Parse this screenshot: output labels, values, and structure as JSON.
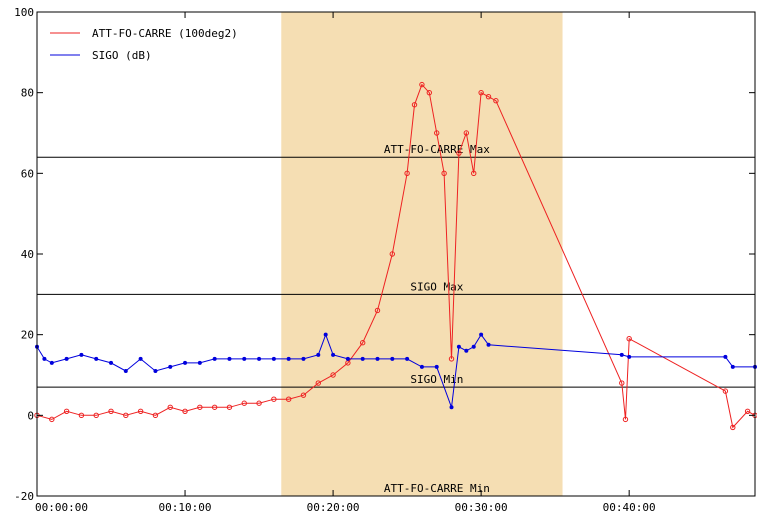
{
  "chart_data": {
    "type": "line",
    "title": "",
    "xlabel": "",
    "ylabel": "",
    "xlim": [
      "00:00:00",
      "00:48:30"
    ],
    "ylim": [
      -20,
      100
    ],
    "x_ticks": [
      "00:00:00",
      "00:10:00",
      "00:20:00",
      "00:30:00",
      "00:40:00"
    ],
    "y_ticks": [
      "-20",
      "0",
      "20",
      "40",
      "60",
      "80",
      "100"
    ],
    "grid": false,
    "legend": {
      "placement": "top-left",
      "entries": [
        {
          "label": "ATT-FO-CARRE (100deg2)",
          "color": "#ee2222"
        },
        {
          "label": "SIGO (dB)",
          "color": "#0000dd"
        }
      ]
    },
    "highlight_band": {
      "x_start": "00:16:30",
      "x_end": "00:35:30",
      "color": "#f5deb3"
    },
    "reference_lines": [
      {
        "label": "ATT-FO-CARRE Max",
        "y": 64
      },
      {
        "label": "SIGO Max",
        "y": 30
      },
      {
        "label": "SIGO Min",
        "y": 7
      },
      {
        "label": "ATT-FO-CARRE Min",
        "y": -20
      }
    ],
    "series": [
      {
        "name": "ATT-FO-CARRE (100deg2)",
        "color": "#ee2222",
        "x": [
          "00:00:00",
          "00:01:00",
          "00:02:00",
          "00:03:00",
          "00:04:00",
          "00:05:00",
          "00:06:00",
          "00:07:00",
          "00:08:00",
          "00:09:00",
          "00:10:00",
          "00:11:00",
          "00:12:00",
          "00:13:00",
          "00:14:00",
          "00:15:00",
          "00:16:00",
          "00:17:00",
          "00:18:00",
          "00:19:00",
          "00:20:00",
          "00:21:00",
          "00:22:00",
          "00:23:00",
          "00:24:00",
          "00:25:00",
          "00:25:30",
          "00:26:00",
          "00:26:30",
          "00:27:00",
          "00:27:30",
          "00:28:00",
          "00:28:30",
          "00:29:00",
          "00:29:30",
          "00:30:00",
          "00:30:30",
          "00:31:00",
          "00:39:30",
          "00:39:45",
          "00:40:00",
          "00:46:30",
          "00:47:00",
          "00:48:00",
          "00:48:30"
        ],
        "values": [
          0,
          -1,
          1,
          0,
          0,
          1,
          0,
          1,
          0,
          2,
          1,
          2,
          2,
          2,
          3,
          3,
          4,
          4,
          5,
          8,
          10,
          13,
          18,
          26,
          40,
          60,
          77,
          82,
          80,
          70,
          60,
          14,
          65,
          70,
          60,
          80,
          79,
          78,
          8,
          -1,
          19,
          6,
          -3,
          1,
          0
        ]
      },
      {
        "name": "SIGO (dB)",
        "color": "#0000dd",
        "x": [
          "00:00:00",
          "00:00:30",
          "00:01:00",
          "00:02:00",
          "00:03:00",
          "00:04:00",
          "00:05:00",
          "00:06:00",
          "00:07:00",
          "00:08:00",
          "00:09:00",
          "00:10:00",
          "00:11:00",
          "00:12:00",
          "00:13:00",
          "00:14:00",
          "00:15:00",
          "00:16:00",
          "00:17:00",
          "00:18:00",
          "00:19:00",
          "00:19:30",
          "00:20:00",
          "00:21:00",
          "00:22:00",
          "00:23:00",
          "00:24:00",
          "00:25:00",
          "00:26:00",
          "00:27:00",
          "00:28:00",
          "00:28:30",
          "00:29:00",
          "00:29:30",
          "00:30:00",
          "00:30:30",
          "00:39:30",
          "00:40:00",
          "00:46:30",
          "00:47:00",
          "00:48:30"
        ],
        "values": [
          17,
          14,
          13,
          14,
          15,
          14,
          13,
          11,
          14,
          11,
          12,
          13,
          13,
          14,
          14,
          14,
          14,
          14,
          14,
          14,
          15,
          20,
          15,
          14,
          14,
          14,
          14,
          14,
          12,
          12,
          2,
          17,
          16,
          17,
          20,
          17.5,
          15,
          14.5,
          14.5,
          12,
          12
        ]
      }
    ]
  }
}
